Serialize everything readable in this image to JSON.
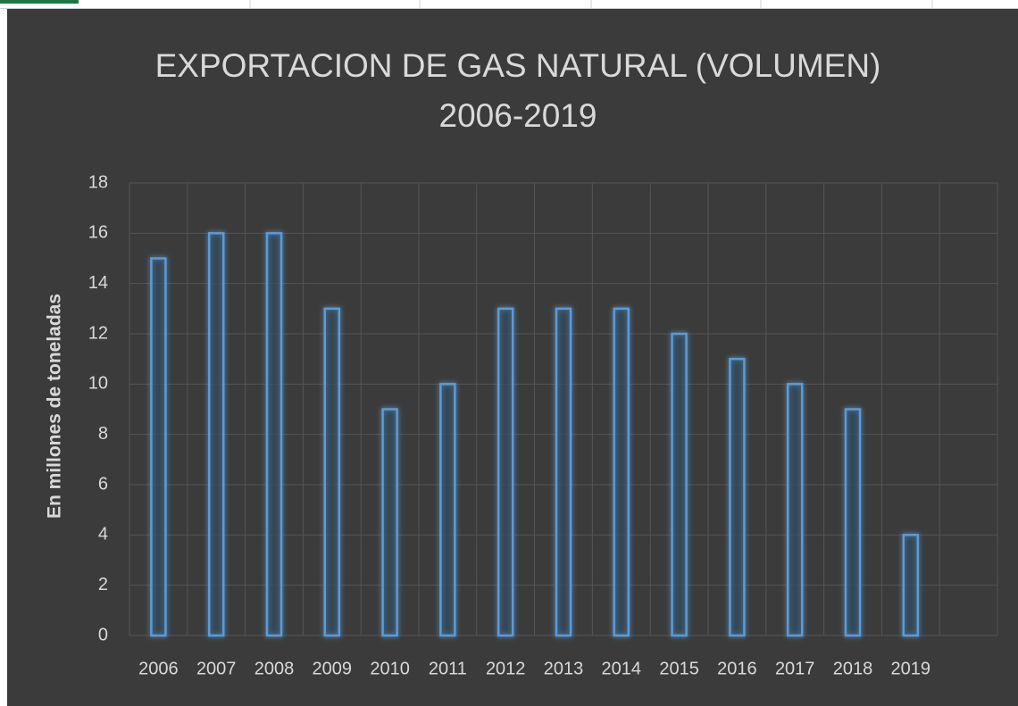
{
  "chart_data": {
    "type": "bar",
    "title": [
      "EXPORTACION DE GAS NATURAL (VOLUMEN)",
      "2006-2019"
    ],
    "y_label": "En millones de toneladas",
    "categories": [
      "2006",
      "2007",
      "2008",
      "2009",
      "2010",
      "2011",
      "2012",
      "2013",
      "2014",
      "2015",
      "2016",
      "2017",
      "2018",
      "2019"
    ],
    "values": [
      15,
      16,
      16,
      13,
      9,
      10,
      13,
      13,
      13,
      12,
      11,
      10,
      9,
      4
    ],
    "color": "#5b9bd5",
    "ylim": [
      0,
      18
    ],
    "yticks": [
      0,
      2,
      4,
      6,
      8,
      10,
      12,
      14,
      16,
      18
    ],
    "grid": true
  }
}
